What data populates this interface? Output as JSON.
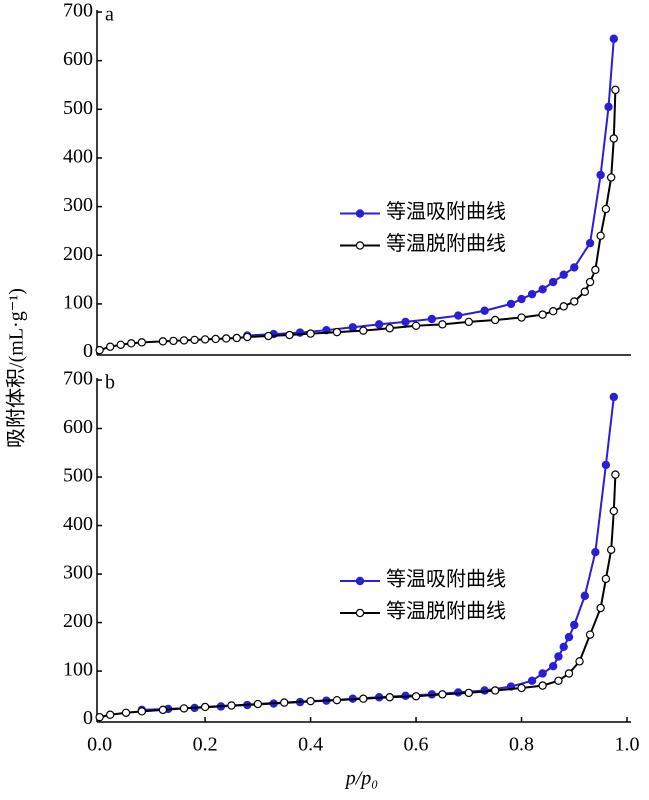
{
  "chart_data": [
    {
      "type": "line",
      "label": "a",
      "ylabel": "吸附体积/(mL·g⁻¹)",
      "xlim": [
        -0.005,
        1.0
      ],
      "ylim": [
        -5,
        700
      ],
      "yticks": [
        0,
        100,
        200,
        300,
        400,
        500,
        600,
        700
      ],
      "legend": "center-right",
      "series": [
        {
          "name": "等温吸附曲线",
          "color": "#2a1fd6",
          "marker": "filled",
          "x": [
            0.28,
            0.33,
            0.38,
            0.43,
            0.48,
            0.53,
            0.58,
            0.63,
            0.68,
            0.73,
            0.78,
            0.8,
            0.82,
            0.84,
            0.86,
            0.88,
            0.9,
            0.93,
            0.95,
            0.965,
            0.975
          ],
          "values": [
            35,
            38,
            41,
            46,
            52,
            58,
            63,
            69,
            76,
            86,
            100,
            110,
            120,
            130,
            145,
            160,
            175,
            225,
            365,
            505,
            645
          ]
        },
        {
          "name": "等温脱附曲线",
          "color": "#000000",
          "marker": "open",
          "x": [
            0.0,
            0.02,
            0.04,
            0.06,
            0.08,
            0.12,
            0.14,
            0.16,
            0.18,
            0.2,
            0.22,
            0.24,
            0.26,
            0.28,
            0.32,
            0.36,
            0.4,
            0.45,
            0.5,
            0.55,
            0.6,
            0.65,
            0.7,
            0.75,
            0.8,
            0.84,
            0.86,
            0.88,
            0.9,
            0.92,
            0.93,
            0.94,
            0.95,
            0.96,
            0.97,
            0.975,
            0.978
          ],
          "values": [
            5,
            12,
            16,
            19,
            21,
            23,
            24,
            25,
            26,
            27,
            28,
            29,
            30,
            32,
            34,
            36,
            39,
            42,
            45,
            50,
            55,
            58,
            63,
            67,
            72,
            78,
            85,
            95,
            105,
            125,
            145,
            170,
            240,
            295,
            360,
            440,
            540
          ]
        }
      ]
    },
    {
      "type": "line",
      "label": "b",
      "xlabel": "p/p₀",
      "xlim": [
        -0.005,
        1.0
      ],
      "ylim": [
        -5,
        700
      ],
      "xticks": [
        {
          "value": 0,
          "label": "0.0"
        },
        0.2,
        0.4,
        0.6,
        0.8,
        {
          "value": 1,
          "label": "1.0"
        }
      ],
      "yticks": [
        0,
        100,
        200,
        300,
        400,
        500,
        600,
        700
      ],
      "legend": "center-right",
      "series": [
        {
          "name": "等温吸附曲线",
          "color": "#2a1fd6",
          "marker": "filled",
          "x": [
            0.08,
            0.13,
            0.18,
            0.23,
            0.28,
            0.33,
            0.38,
            0.43,
            0.48,
            0.53,
            0.58,
            0.63,
            0.68,
            0.73,
            0.78,
            0.82,
            0.84,
            0.86,
            0.87,
            0.88,
            0.89,
            0.9,
            0.92,
            0.94,
            0.96,
            0.975
          ],
          "values": [
            20,
            22,
            24,
            27,
            30,
            33,
            36,
            39,
            43,
            46,
            49,
            52,
            56,
            60,
            68,
            80,
            95,
            110,
            130,
            150,
            170,
            195,
            255,
            345,
            525,
            665
          ]
        },
        {
          "name": "等温脱附曲线",
          "color": "#000000",
          "marker": "open",
          "x": [
            0.0,
            0.02,
            0.05,
            0.08,
            0.12,
            0.16,
            0.2,
            0.25,
            0.3,
            0.35,
            0.4,
            0.45,
            0.5,
            0.55,
            0.6,
            0.65,
            0.7,
            0.75,
            0.8,
            0.84,
            0.87,
            0.89,
            0.91,
            0.93,
            0.95,
            0.96,
            0.97,
            0.975,
            0.978
          ],
          "values": [
            5,
            10,
            14,
            17,
            20,
            23,
            26,
            29,
            32,
            35,
            38,
            40,
            43,
            46,
            48,
            52,
            55,
            60,
            65,
            70,
            80,
            95,
            120,
            175,
            230,
            290,
            350,
            430,
            505
          ]
        }
      ]
    }
  ]
}
